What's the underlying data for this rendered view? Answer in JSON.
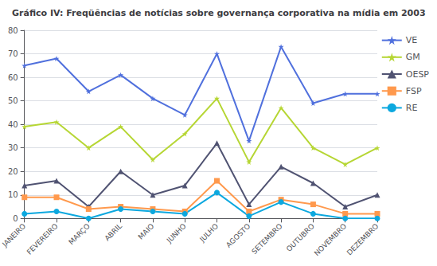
{
  "chart_data": {
    "type": "line",
    "title": "Gráfico IV: Freqüências de notícias sobre governança corporativa na mídia em 2003",
    "categories": [
      "JANEIRO",
      "FEVEREIRO",
      "MARÇO",
      "ABRIL",
      "MAIO",
      "JUNHO",
      "JULHO",
      "AGOSTO",
      "SETEMBRO",
      "OUTUBRO",
      "NOVEMBRO",
      "DEZEMBRO"
    ],
    "series": [
      {
        "name": "VE",
        "marker": "star",
        "values": [
          65,
          68,
          54,
          61,
          51,
          44,
          70,
          33,
          73,
          49,
          53,
          53
        ]
      },
      {
        "name": "GM",
        "marker": "star",
        "values": [
          39,
          41,
          30,
          39,
          25,
          36,
          51,
          24,
          47,
          30,
          23,
          30
        ]
      },
      {
        "name": "OESP",
        "marker": "triangle",
        "values": [
          14,
          16,
          5,
          20,
          10,
          14,
          32,
          6,
          22,
          15,
          5,
          10
        ]
      },
      {
        "name": "FSP",
        "marker": "square",
        "values": [
          9,
          9,
          4,
          5,
          4,
          3,
          16,
          3,
          8,
          6,
          2,
          2
        ]
      },
      {
        "name": "RE",
        "marker": "circle",
        "values": [
          2,
          3,
          0,
          4,
          3,
          2,
          11,
          1,
          7,
          2,
          0,
          0
        ]
      }
    ],
    "ylim": [
      0,
      80
    ],
    "yticks": [
      0,
      10,
      20,
      30,
      40,
      50,
      60,
      70,
      80
    ],
    "grid": true,
    "legend": "upper right"
  }
}
